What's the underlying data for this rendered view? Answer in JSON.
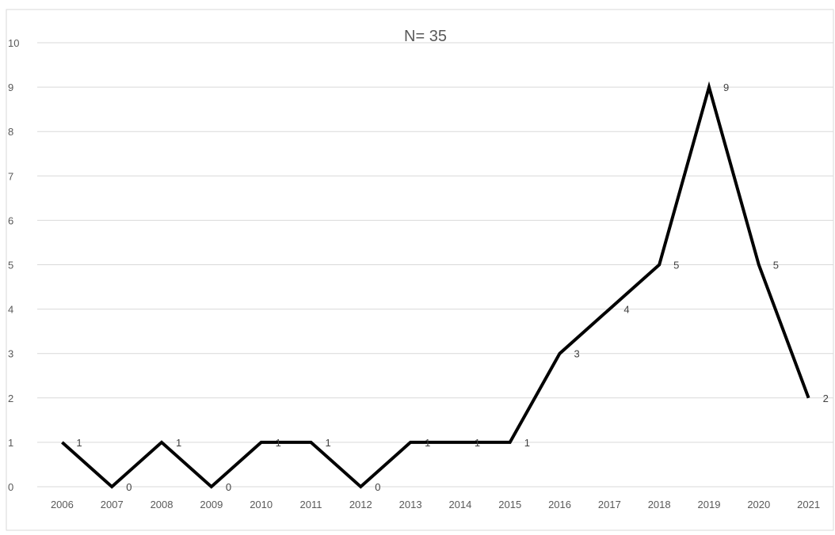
{
  "chart_data": {
    "type": "line",
    "title": "N= 35",
    "xlabel": "",
    "ylabel": "",
    "categories": [
      "2006",
      "2007",
      "2008",
      "2009",
      "2010",
      "2011",
      "2012",
      "2013",
      "2014",
      "2015",
      "2016",
      "2017",
      "2018",
      "2019",
      "2020",
      "2021"
    ],
    "series": [
      {
        "values": [
          1,
          0,
          1,
          0,
          1,
          1,
          0,
          1,
          1,
          1,
          3,
          4,
          5,
          9,
          5,
          2
        ],
        "color": "#000000"
      }
    ],
    "ylim": [
      0,
      10
    ],
    "yticks": [
      0,
      1,
      2,
      3,
      4,
      5,
      6,
      7,
      8,
      9,
      10
    ],
    "grid": true,
    "gridColor": "#d9d9d9",
    "data_labels": true,
    "legend": "none"
  }
}
